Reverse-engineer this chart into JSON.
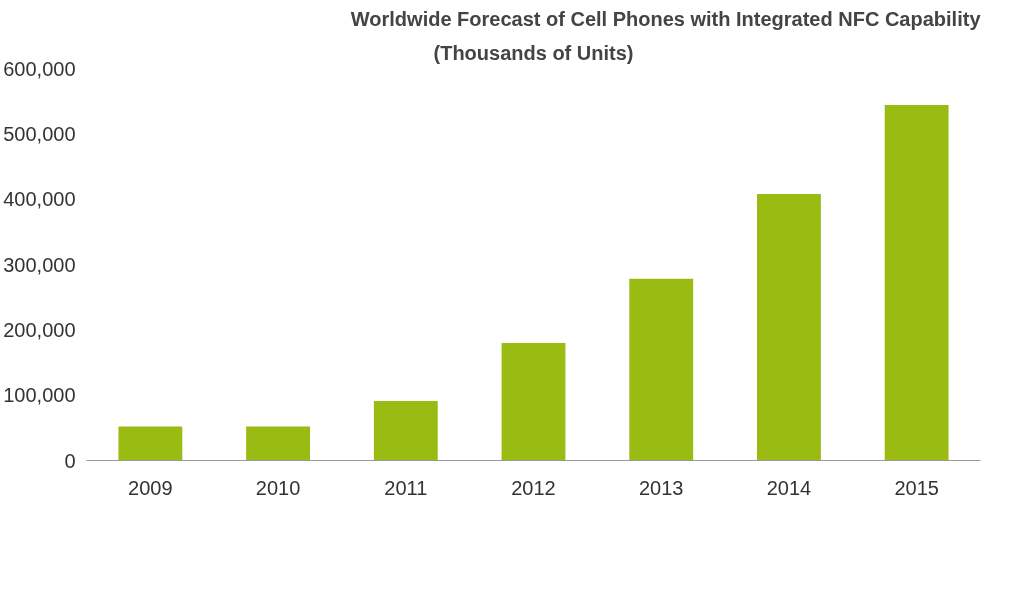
{
  "chart_data": {
    "type": "bar",
    "title": "Worldwide Forecast of Cell Phones with Integrated NFC Capability",
    "subtitle": "(Thousands of Units)",
    "categories": [
      "2009",
      "2010",
      "2011",
      "2012",
      "2013",
      "2014",
      "2015"
    ],
    "values": [
      52000,
      52000,
      91000,
      180000,
      278000,
      408000,
      544000
    ],
    "color": "#9abb12",
    "ylim": [
      0,
      600000
    ],
    "yticks": [
      {
        "value": 0,
        "label": "0"
      },
      {
        "value": 100000,
        "label": "100,000"
      },
      {
        "value": 200000,
        "label": "200,000"
      },
      {
        "value": 300000,
        "label": "300,000"
      },
      {
        "value": 400000,
        "label": "400,000"
      },
      {
        "value": 500000,
        "label": "500,000"
      },
      {
        "value": 600000,
        "label": "600,000"
      }
    ],
    "grid": false
  }
}
